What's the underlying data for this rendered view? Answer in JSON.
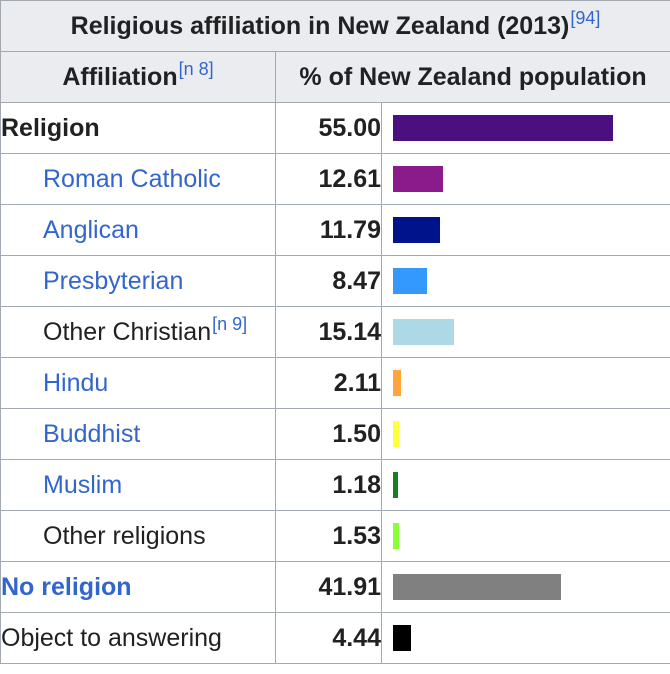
{
  "caption": {
    "text": "Religious affiliation in New Zealand (2013)",
    "ref": "[94]"
  },
  "headers": {
    "affiliation": "Affiliation",
    "affiliation_note": "[n 8]",
    "percent": "% of New Zealand population"
  },
  "chart_data": {
    "type": "bar",
    "title": "Religious affiliation in New Zealand (2013)",
    "xlabel": "",
    "ylabel": "% of New Zealand population",
    "categories": [
      "Religion",
      "Roman Catholic",
      "Anglican",
      "Presbyterian",
      "Other Christian",
      "Hindu",
      "Buddhist",
      "Muslim",
      "Other religions",
      "No religion",
      "Object to answering"
    ],
    "values": [
      55.0,
      12.61,
      11.79,
      8.47,
      15.14,
      2.11,
      1.5,
      1.18,
      1.53,
      41.91,
      4.44
    ],
    "ylim": [
      0,
      55
    ],
    "rows": [
      {
        "label": "Religion",
        "value": "55.00",
        "note": "",
        "color": "#4b0f80",
        "style": "bold"
      },
      {
        "label": "Roman Catholic",
        "value": "12.61",
        "note": "",
        "color": "#8b1a8b",
        "style": "indent-link"
      },
      {
        "label": "Anglican",
        "value": "11.79",
        "note": "",
        "color": "#00138a",
        "style": "indent-link"
      },
      {
        "label": "Presbyterian",
        "value": "8.47",
        "note": "",
        "color": "#3399ff",
        "style": "indent-link"
      },
      {
        "label": "Other Christian",
        "value": "15.14",
        "note": "[n 9]",
        "color": "#add8e6",
        "style": "indent"
      },
      {
        "label": "Hindu",
        "value": "2.11",
        "note": "",
        "color": "#ffa53a",
        "style": "indent-link"
      },
      {
        "label": "Buddhist",
        "value": "1.50",
        "note": "",
        "color": "#ffff3b",
        "style": "indent-link"
      },
      {
        "label": "Muslim",
        "value": "1.18",
        "note": "",
        "color": "#14801f",
        "style": "indent-link"
      },
      {
        "label": "Other religions",
        "value": "1.53",
        "note": "",
        "color": "#8aff3a",
        "style": "indent"
      },
      {
        "label": "No religion",
        "value": "41.91",
        "note": "",
        "color": "#808080",
        "style": "bold-link"
      },
      {
        "label": "Object to answering",
        "value": "4.44",
        "note": "",
        "color": "#000000",
        "style": "plain"
      }
    ]
  }
}
